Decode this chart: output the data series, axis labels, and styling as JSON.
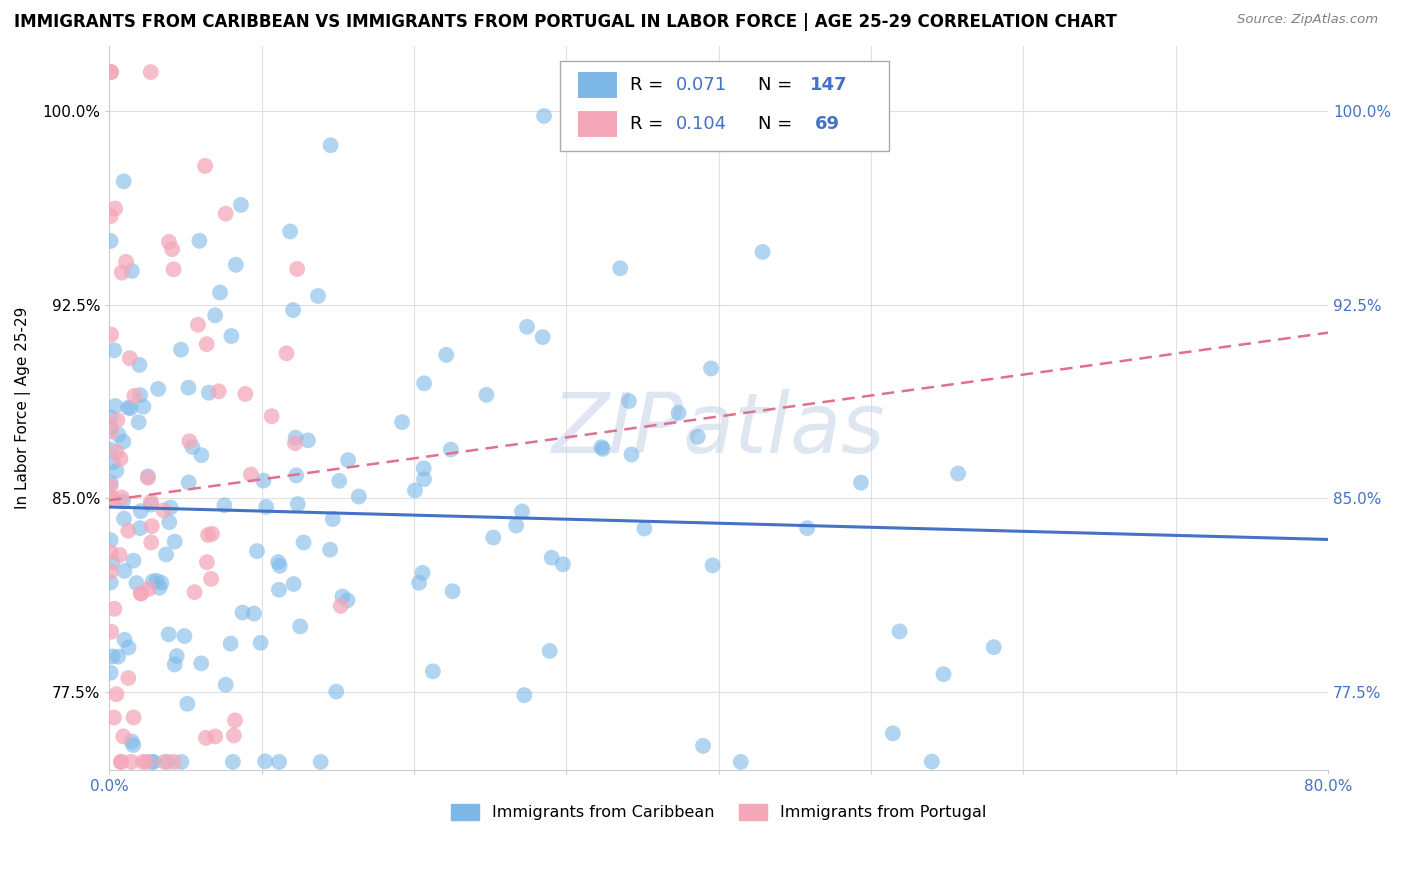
{
  "title": "IMMIGRANTS FROM CARIBBEAN VS IMMIGRANTS FROM PORTUGAL IN LABOR FORCE | AGE 25-29 CORRELATION CHART",
  "source": "Source: ZipAtlas.com",
  "ylabel": "In Labor Force | Age 25-29",
  "xlim": [
    0.0,
    0.8
  ],
  "ylim": [
    0.745,
    1.025
  ],
  "xticks": [
    0.0,
    0.1,
    0.2,
    0.3,
    0.4,
    0.5,
    0.6,
    0.7,
    0.8
  ],
  "xtick_labels": [
    "0.0%",
    "",
    "",
    "",
    "",
    "",
    "",
    "",
    "80.0%"
  ],
  "ytick_labels": [
    "77.5%",
    "85.0%",
    "92.5%",
    "100.0%"
  ],
  "yticks": [
    0.775,
    0.85,
    0.925,
    1.0
  ],
  "watermark": "ZIPatlas",
  "blue_color": "#7db8e8",
  "pink_color": "#f4a7b9",
  "trend_blue": "#4472c4",
  "trend_pink": "#e07090",
  "n_blue": 147,
  "n_pink": 69,
  "R_blue": 0.071,
  "R_pink": 0.104,
  "background_color": "#ffffff",
  "grid_color": "#e0e0e0",
  "title_fontsize": 12,
  "axis_label_fontsize": 11,
  "tick_fontsize": 11,
  "legend_fontsize": 13
}
